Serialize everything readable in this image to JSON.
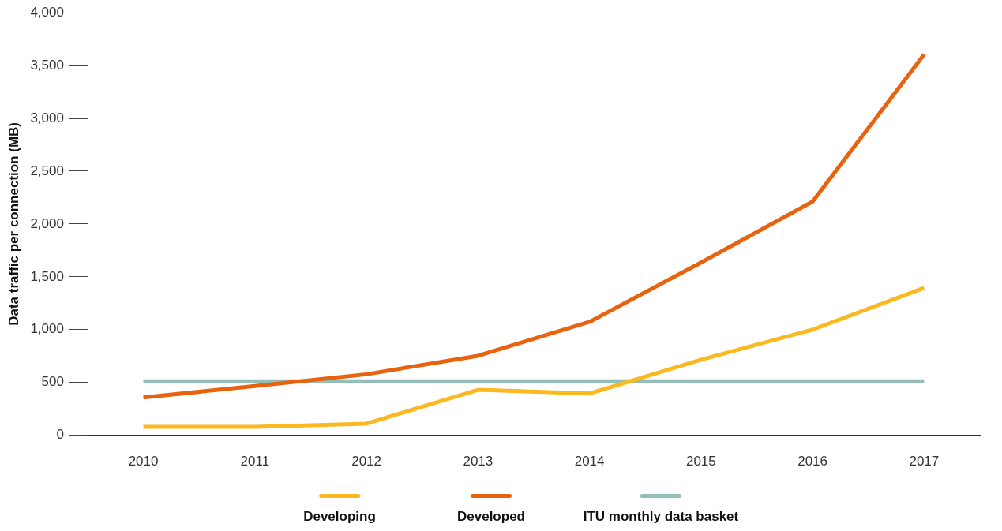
{
  "chart_data": {
    "type": "line",
    "ylabel": "Data traffic per connection (MB)",
    "categories": [
      "2010",
      "2011",
      "2012",
      "2013",
      "2014",
      "2015",
      "2016",
      "2017"
    ],
    "series": [
      {
        "name": "Developing",
        "color": "#fbb81f",
        "values": [
          80,
          80,
          110,
          430,
          395,
          715,
          1000,
          1395
        ]
      },
      {
        "name": "Developed",
        "color": "#e9630f",
        "values": [
          358,
          465,
          577,
          752,
          1073,
          1635,
          2212,
          3606
        ]
      },
      {
        "name": "ITU monthly data basket",
        "color": "#93bfb8",
        "values": [
          510,
          510,
          510,
          510,
          510,
          510,
          510,
          510
        ]
      }
    ],
    "ylim": [
      0,
      4000
    ],
    "yticks": [
      {
        "value": 0,
        "label": "0"
      },
      {
        "value": 500,
        "label": "500"
      },
      {
        "value": 1000,
        "label": "1,000"
      },
      {
        "value": 1500,
        "label": "1,500"
      },
      {
        "value": 2000,
        "label": "2,000"
      },
      {
        "value": 2500,
        "label": "2,500"
      },
      {
        "value": 3000,
        "label": "3,000"
      },
      {
        "value": 3500,
        "label": "3,500"
      },
      {
        "value": 4000,
        "label": "4,000"
      }
    ],
    "grid": false,
    "legend": "bottom",
    "marker": "none",
    "line_style": "solid"
  }
}
